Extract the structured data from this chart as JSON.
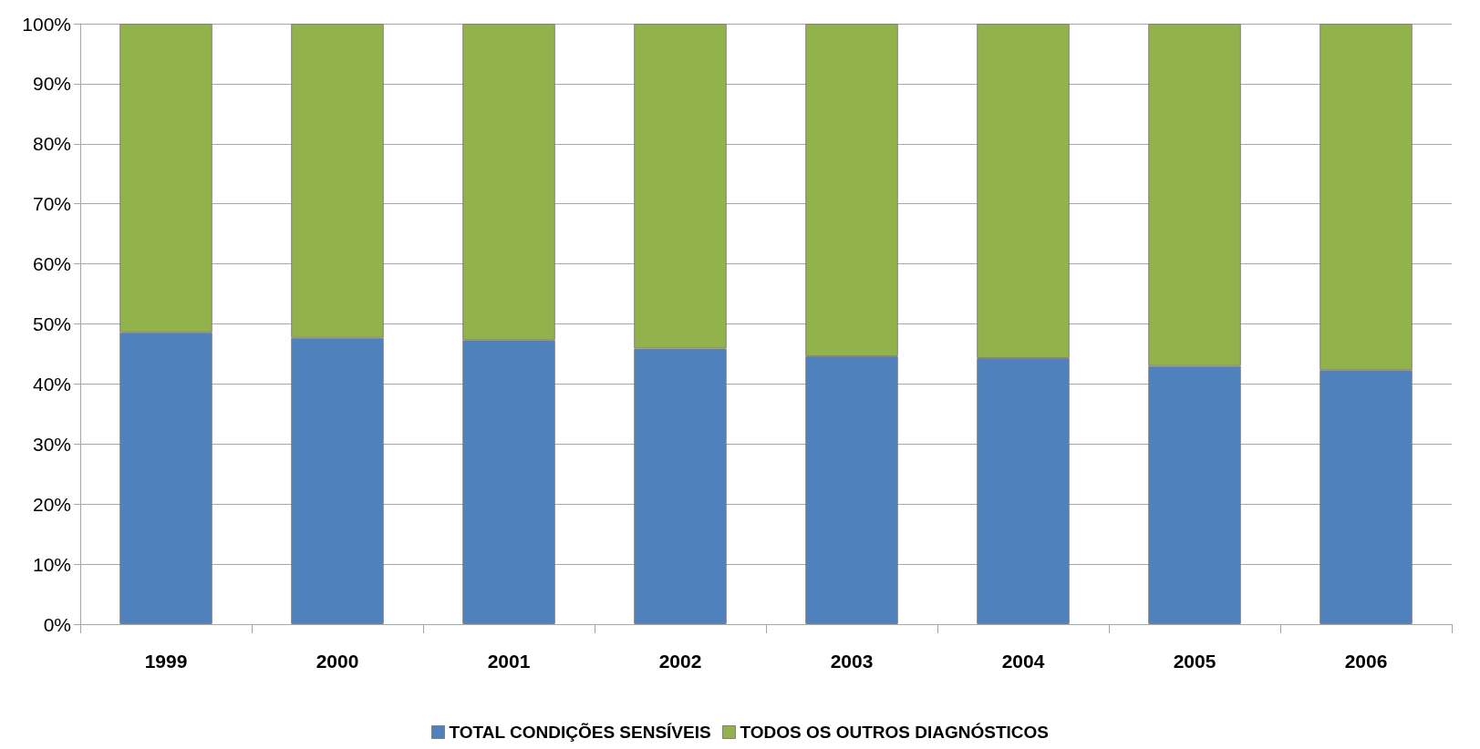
{
  "chart_data": {
    "type": "bar",
    "stacked": true,
    "categories": [
      "1999",
      "2000",
      "2001",
      "2002",
      "2003",
      "2004",
      "2005",
      "2006"
    ],
    "series": [
      {
        "name": "TOTAL CONDIÇÕES SENSÍVEIS",
        "color": "#4f81bd",
        "values": [
          48.6,
          47.7,
          47.3,
          45.9,
          44.6,
          44.3,
          43.0,
          42.3
        ]
      },
      {
        "name": "TODOS OS OUTROS DIAGNÓSTICOS",
        "color": "#92b34b",
        "values": [
          51.4,
          52.3,
          52.7,
          54.1,
          55.4,
          55.7,
          57.0,
          57.7
        ]
      }
    ],
    "ylim": [
      0,
      100
    ],
    "yticks": [
      {
        "value": 0,
        "label": "0%"
      },
      {
        "value": 10,
        "label": "10%"
      },
      {
        "value": 20,
        "label": "20%"
      },
      {
        "value": 30,
        "label": "30%"
      },
      {
        "value": 40,
        "label": "40%"
      },
      {
        "value": 50,
        "label": "50%"
      },
      {
        "value": 60,
        "label": "60%"
      },
      {
        "value": 70,
        "label": "70%"
      },
      {
        "value": 80,
        "label": "80%"
      },
      {
        "value": 90,
        "label": "90%"
      },
      {
        "value": 100,
        "label": "100%"
      }
    ],
    "grid": "y",
    "legend": "bottom"
  }
}
